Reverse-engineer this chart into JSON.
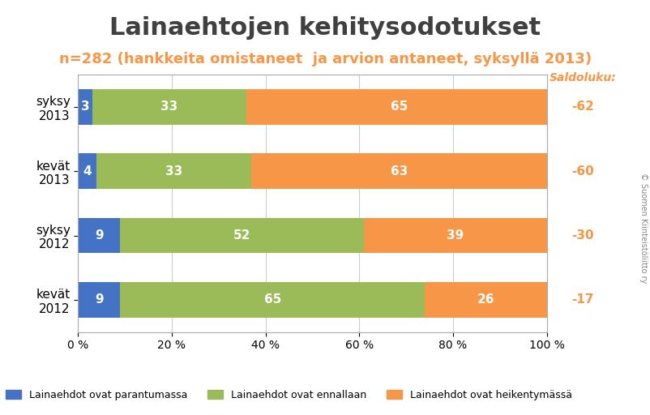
{
  "title": "Lainaehtojen kehitysodotukset",
  "subtitle": "n=282 (hankkeita omistaneet  ja arvion antaneet, syksyllä 2013)",
  "categories": [
    "kevät\n2012",
    "syksy\n2012",
    "kevät\n2013",
    "syksy\n2013"
  ],
  "blue_values": [
    9,
    9,
    4,
    3
  ],
  "green_values": [
    65,
    52,
    33,
    33
  ],
  "orange_values": [
    26,
    39,
    63,
    65
  ],
  "saldoluku_label": "Saldoluku:",
  "saldoluku_values": [
    "-17",
    "-30",
    "-60",
    "-62"
  ],
  "blue_color": "#4472C4",
  "green_color": "#9BBB59",
  "orange_color": "#F79646",
  "legend_labels": [
    "Lainaehdot ovat parantumassa",
    "Lainaehdot ovat ennallaan",
    "Lainaehdot ovat heikentymässä"
  ],
  "title_fontsize": 22,
  "subtitle_fontsize": 13,
  "subtitle_color": "#F79646",
  "saldoluku_color": "#F79646",
  "copyright_text": "© Suomen Kiinteistöliitto ry",
  "background_color": "#FFFFFF",
  "plot_bg_color": "#FFFFFF"
}
